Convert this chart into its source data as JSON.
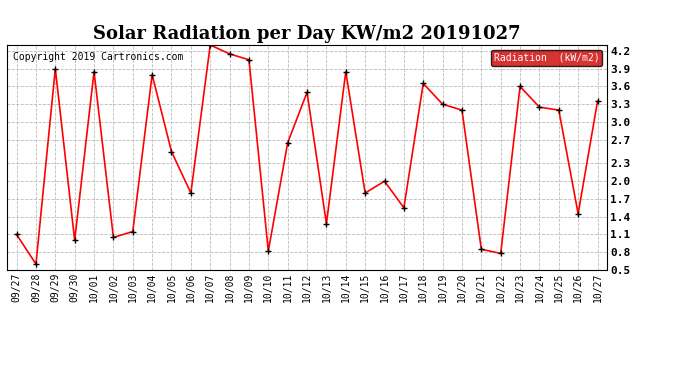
{
  "title": "Solar Radiation per Day KW/m2 20191027",
  "copyright": "Copyright 2019 Cartronics.com",
  "legend_label": "Radiation  (kW/m2)",
  "dates": [
    "09/27",
    "09/28",
    "09/29",
    "09/30",
    "10/01",
    "10/02",
    "10/03",
    "10/04",
    "10/05",
    "10/06",
    "10/07",
    "10/08",
    "10/09",
    "10/10",
    "10/11",
    "10/12",
    "10/13",
    "10/14",
    "10/15",
    "10/16",
    "10/17",
    "10/18",
    "10/19",
    "10/20",
    "10/21",
    "10/22",
    "10/23",
    "10/24",
    "10/25",
    "10/26",
    "10/27"
  ],
  "values": [
    1.1,
    0.6,
    3.9,
    1.0,
    3.85,
    1.05,
    1.15,
    3.8,
    2.5,
    1.8,
    4.3,
    4.15,
    4.05,
    0.82,
    2.65,
    3.5,
    1.28,
    3.85,
    1.8,
    2.0,
    1.55,
    3.65,
    3.3,
    3.2,
    0.85,
    0.78,
    3.6,
    3.25,
    3.2,
    1.45,
    3.35
  ],
  "ylim": [
    0.5,
    4.3
  ],
  "yticks": [
    0.5,
    0.8,
    1.1,
    1.4,
    1.7,
    2.0,
    2.3,
    2.7,
    3.0,
    3.3,
    3.6,
    3.9,
    4.2
  ],
  "line_color": "red",
  "marker_color": "black",
  "marker": "+",
  "bg_color": "#ffffff",
  "grid_color": "#bbbbbb",
  "title_fontsize": 13,
  "copyright_fontsize": 7,
  "legend_bg": "#cc0000",
  "legend_fg": "#ffffff"
}
